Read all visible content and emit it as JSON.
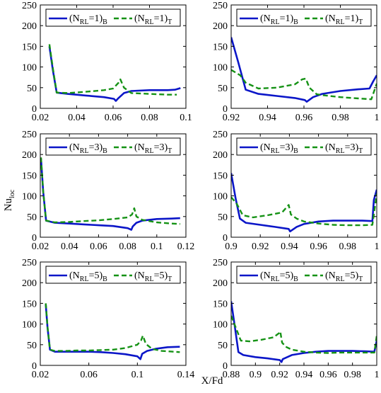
{
  "figure": {
    "ylabel": "Nu",
    "ylabel_sub": "loc",
    "xlabel": "X/Fd"
  },
  "colors": {
    "bottom": "#0b16c8",
    "top": "#159215"
  },
  "chart_data": [
    {
      "type": "line",
      "xlim": [
        0.02,
        0.1
      ],
      "ylim": [
        0,
        250
      ],
      "xticks": [
        0.02,
        0.04,
        0.06,
        0.08,
        0.1
      ],
      "xtick_labels": [
        "0.02",
        "0.04",
        "0.06",
        "0.08",
        "0.1"
      ],
      "yticks": [
        0,
        50,
        100,
        150,
        200,
        250
      ],
      "ytick_labels": [
        "0",
        "50",
        "100",
        "150",
        "200",
        "250"
      ],
      "legend": {
        "position": "top",
        "n": "1"
      },
      "series": [
        {
          "name": "(NRL=1)B",
          "label_main": "(N",
          "label_sub1": "RL",
          "label_mid": "=1)",
          "label_sub2": "B",
          "style": "solid",
          "x": [
            0.025,
            0.027,
            0.029,
            0.035,
            0.045,
            0.055,
            0.0605,
            0.0615,
            0.063,
            0.066,
            0.07,
            0.08,
            0.09,
            0.094,
            0.097
          ],
          "y": [
            150,
            90,
            38,
            35,
            31,
            27,
            23,
            18,
            25,
            37,
            42,
            44,
            44,
            45,
            49
          ]
        },
        {
          "name": "(NRL=1)T",
          "label_main": "(N",
          "label_sub1": "RL",
          "label_mid": "=1)",
          "label_sub2": "T",
          "style": "dashed",
          "x": [
            0.025,
            0.027,
            0.029,
            0.035,
            0.045,
            0.055,
            0.06,
            0.063,
            0.064,
            0.066,
            0.07,
            0.08,
            0.09,
            0.095
          ],
          "y": [
            155,
            95,
            38,
            37,
            40,
            44,
            48,
            62,
            70,
            50,
            37,
            35,
            33,
            33
          ]
        }
      ]
    },
    {
      "type": "line",
      "xlim": [
        0.92,
        1
      ],
      "ylim": [
        0,
        250
      ],
      "xticks": [
        0.92,
        0.94,
        0.96,
        0.98,
        1
      ],
      "xtick_labels": [
        "0.92",
        "0.94",
        "0.96",
        "0.98",
        "1"
      ],
      "yticks": [
        0,
        50,
        100,
        150,
        200,
        250
      ],
      "ytick_labels": [
        "0",
        "50",
        "100",
        "150",
        "200",
        "250"
      ],
      "legend": {
        "position": "top",
        "n": "1"
      },
      "series": [
        {
          "name": "(NRL=1)B",
          "label_main": "(N",
          "label_sub1": "RL",
          "label_mid": "=1)",
          "label_sub2": "B",
          "style": "solid",
          "x": [
            0.92,
            0.924,
            0.928,
            0.935,
            0.945,
            0.955,
            0.9605,
            0.9615,
            0.965,
            0.97,
            0.98,
            0.99,
            0.996,
            0.998,
            1
          ],
          "y": [
            172,
            110,
            45,
            35,
            30,
            25,
            20,
            16,
            27,
            35,
            42,
            46,
            48,
            65,
            80
          ]
        },
        {
          "name": "(NRL=1)T",
          "label_main": "(N",
          "label_sub1": "RL",
          "label_mid": "=1)",
          "label_sub2": "T",
          "style": "dashed",
          "x": [
            0.92,
            0.925,
            0.928,
            0.935,
            0.945,
            0.955,
            0.959,
            0.961,
            0.963,
            0.967,
            0.97,
            0.98,
            0.99,
            0.997,
            1
          ],
          "y": [
            93,
            80,
            62,
            48,
            50,
            58,
            70,
            72,
            50,
            34,
            32,
            27,
            24,
            22,
            60
          ]
        }
      ]
    },
    {
      "type": "line",
      "xlim": [
        0.02,
        0.12
      ],
      "ylim": [
        0,
        250
      ],
      "xticks": [
        0.02,
        0.04,
        0.06,
        0.08,
        0.1,
        0.12
      ],
      "xtick_labels": [
        "0.02",
        "0.04",
        "0.06",
        "0.08",
        "0.1",
        "0.12"
      ],
      "yticks": [
        0,
        50,
        100,
        150,
        200,
        250
      ],
      "ytick_labels": [
        "0",
        "50",
        "100",
        "150",
        "200",
        "250"
      ],
      "legend": {
        "position": "top",
        "n": "3"
      },
      "series": [
        {
          "name": "(NRL=3)B",
          "label_main": "(N",
          "label_sub1": "RL",
          "label_mid": "=3)",
          "label_sub2": "B",
          "style": "solid",
          "x": [
            0.0205,
            0.022,
            0.024,
            0.03,
            0.04,
            0.05,
            0.06,
            0.07,
            0.08,
            0.0825,
            0.0835,
            0.086,
            0.09,
            0.1,
            0.11,
            0.116
          ],
          "y": [
            190,
            110,
            40,
            35,
            33,
            31,
            29,
            27,
            22,
            18,
            26,
            35,
            40,
            44,
            45,
            46
          ]
        },
        {
          "name": "(NRL=3)T",
          "label_main": "(N",
          "label_sub1": "RL",
          "label_mid": "=3)",
          "label_sub2": "T",
          "style": "dashed",
          "x": [
            0.0205,
            0.022,
            0.024,
            0.03,
            0.04,
            0.05,
            0.06,
            0.07,
            0.08,
            0.083,
            0.0845,
            0.086,
            0.09,
            0.1,
            0.11,
            0.116
          ],
          "y": [
            193,
            110,
            40,
            36,
            37,
            39,
            41,
            44,
            48,
            55,
            70,
            50,
            42,
            36,
            33,
            32
          ]
        }
      ]
    },
    {
      "type": "line",
      "xlim": [
        0.9,
        1
      ],
      "ylim": [
        0,
        250
      ],
      "xticks": [
        0.9,
        0.92,
        0.94,
        0.96,
        0.98,
        1
      ],
      "xtick_labels": [
        "0.9",
        "0.92",
        "0.94",
        "0.96",
        "0.98",
        "1"
      ],
      "yticks": [
        0,
        50,
        100,
        150,
        200,
        250
      ],
      "ytick_labels": [
        "0",
        "50",
        "100",
        "150",
        "200",
        "250"
      ],
      "legend": {
        "position": "top",
        "n": "3"
      },
      "series": [
        {
          "name": "(NRL=3)B",
          "label_main": "(N",
          "label_sub1": "RL",
          "label_mid": "=3)",
          "label_sub2": "B",
          "style": "solid",
          "x": [
            0.9,
            0.903,
            0.906,
            0.91,
            0.92,
            0.93,
            0.9395,
            0.9405,
            0.945,
            0.95,
            0.96,
            0.97,
            0.98,
            0.99,
            0.997,
            0.998,
            1
          ],
          "y": [
            155,
            95,
            45,
            35,
            30,
            25,
            20,
            14,
            25,
            32,
            38,
            40,
            40,
            40,
            39,
            90,
            115
          ]
        },
        {
          "name": "(NRL=3)T",
          "label_main": "(N",
          "label_sub1": "RL",
          "label_mid": "=3)",
          "label_sub2": "T",
          "style": "dashed",
          "x": [
            0.9,
            0.904,
            0.908,
            0.915,
            0.925,
            0.935,
            0.938,
            0.9395,
            0.941,
            0.945,
            0.95,
            0.96,
            0.97,
            0.98,
            0.99,
            0.997,
            1
          ],
          "y": [
            97,
            80,
            53,
            48,
            53,
            60,
            72,
            78,
            55,
            45,
            38,
            33,
            30,
            29,
            29,
            30,
            105
          ]
        }
      ]
    },
    {
      "type": "line",
      "xlim": [
        0.02,
        0.14
      ],
      "ylim": [
        0,
        250
      ],
      "xticks": [
        0.02,
        0.06,
        0.1,
        0.14
      ],
      "xtick_labels": [
        "0.02",
        "0.06",
        "0.1",
        "0.14"
      ],
      "yticks": [
        0,
        50,
        100,
        150,
        200,
        250
      ],
      "ytick_labels": [
        "0",
        "50",
        "100",
        "150",
        "200",
        "250"
      ],
      "legend": {
        "position": "top",
        "n": "5"
      },
      "series": [
        {
          "name": "(NRL=5)B",
          "label_main": "(N",
          "label_sub1": "RL",
          "label_mid": "=5)",
          "label_sub2": "B",
          "style": "solid",
          "x": [
            0.0245,
            0.026,
            0.028,
            0.032,
            0.04,
            0.05,
            0.06,
            0.07,
            0.08,
            0.09,
            0.1,
            0.1025,
            0.104,
            0.108,
            0.115,
            0.125,
            0.135
          ],
          "y": [
            148,
            90,
            38,
            33,
            33,
            33,
            33,
            32,
            30,
            27,
            22,
            15,
            28,
            35,
            40,
            44,
            45
          ]
        },
        {
          "name": "(NRL=5)T",
          "label_main": "(N",
          "label_sub1": "RL",
          "label_mid": "=5)",
          "label_sub2": "T",
          "style": "dashed",
          "x": [
            0.0245,
            0.026,
            0.028,
            0.032,
            0.04,
            0.05,
            0.06,
            0.07,
            0.08,
            0.09,
            0.1,
            0.103,
            0.1045,
            0.107,
            0.112,
            0.12,
            0.13,
            0.135
          ],
          "y": [
            150,
            92,
            38,
            35,
            35,
            36,
            36,
            37,
            38,
            42,
            50,
            60,
            72,
            52,
            40,
            35,
            33,
            32
          ]
        }
      ]
    },
    {
      "type": "line",
      "xlim": [
        0.88,
        1
      ],
      "ylim": [
        0,
        250
      ],
      "xticks": [
        0.88,
        0.9,
        0.92,
        0.94,
        0.96,
        0.98,
        1
      ],
      "xtick_labels": [
        "0.88",
        "0.9",
        "0.92",
        "0.94",
        "0.96",
        "0.98",
        "1"
      ],
      "yticks": [
        0,
        50,
        100,
        150,
        200,
        250
      ],
      "ytick_labels": [
        "0",
        "50",
        "100",
        "150",
        "200",
        "250"
      ],
      "legend": {
        "position": "top",
        "n": "5"
      },
      "series": [
        {
          "name": "(NRL=5)B",
          "label_main": "(N",
          "label_sub1": "RL",
          "label_mid": "=5)",
          "label_sub2": "B",
          "style": "solid",
          "x": [
            0.88,
            0.883,
            0.886,
            0.89,
            0.9,
            0.91,
            0.92,
            0.9215,
            0.9225,
            0.93,
            0.94,
            0.95,
            0.96,
            0.97,
            0.98,
            0.99,
            0.998,
            1
          ],
          "y": [
            155,
            95,
            32,
            25,
            20,
            17,
            13,
            8,
            15,
            25,
            30,
            33,
            35,
            35,
            35,
            34,
            33,
            60
          ]
        },
        {
          "name": "(NRL=5)T",
          "label_main": "(N",
          "label_sub1": "RL",
          "label_mid": "=5)",
          "label_sub2": "T",
          "style": "dashed",
          "x": [
            0.88,
            0.884,
            0.888,
            0.895,
            0.905,
            0.915,
            0.9195,
            0.9205,
            0.922,
            0.925,
            0.93,
            0.94,
            0.95,
            0.96,
            0.97,
            0.98,
            0.99,
            0.998,
            1
          ],
          "y": [
            120,
            90,
            60,
            58,
            62,
            68,
            78,
            82,
            55,
            45,
            38,
            33,
            31,
            30,
            31,
            31,
            31,
            31,
            72
          ]
        }
      ]
    }
  ]
}
